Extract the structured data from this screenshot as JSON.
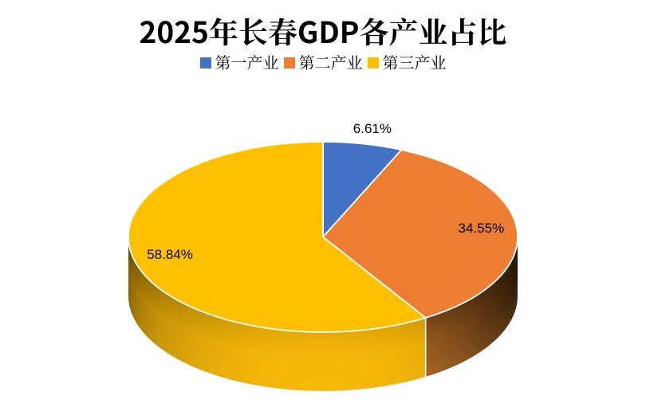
{
  "title": "2025年长春GDP各产业占比",
  "legend": {
    "position": "top",
    "items": [
      {
        "label": "第一产业",
        "color": "#4472C4"
      },
      {
        "label": "第二产业",
        "color": "#ED7D31"
      },
      {
        "label": "第三产业",
        "color": "#FFC000"
      }
    ]
  },
  "chart_data": {
    "type": "pie",
    "style": "pie-3d",
    "title": "2025年长春GDP各产业占比",
    "categories": [
      "第一产业",
      "第二产业",
      "第三产业"
    ],
    "values": [
      6.61,
      34.55,
      58.84
    ],
    "labels": [
      "6.61%",
      "34.55%",
      "58.84%"
    ],
    "unit": "%",
    "colors": [
      "#4472C4",
      "#ED7D31",
      "#FFC000"
    ],
    "start_angle_deg": 0,
    "direction": "clockwise",
    "legend_position": "top",
    "background": "#FFFFFF"
  }
}
